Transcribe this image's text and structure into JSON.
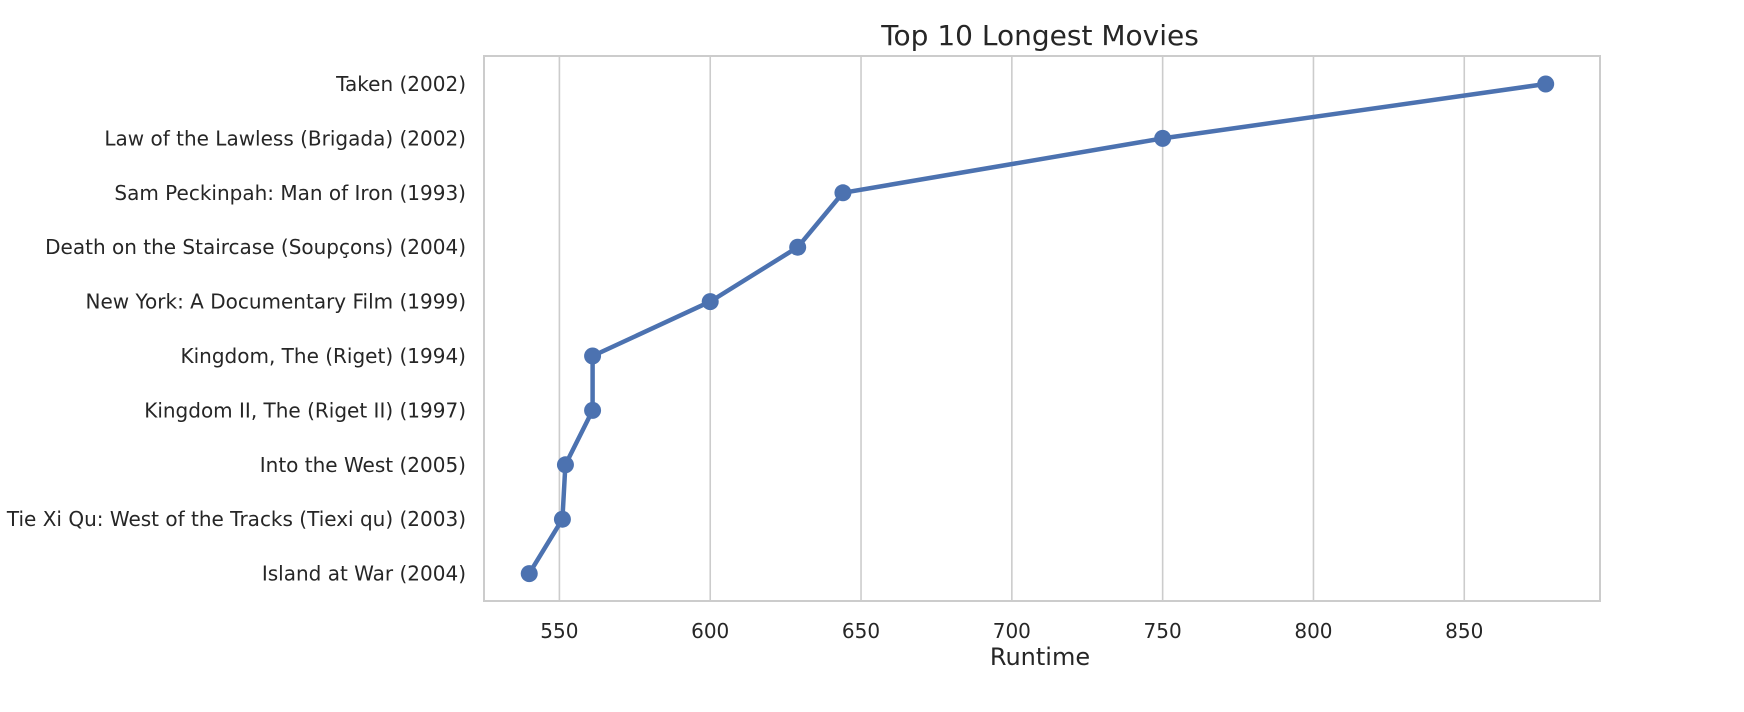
{
  "chart_data": {
    "type": "line",
    "title": "Top 10 Longest Movies",
    "xlabel": "Runtime",
    "ylabel": "",
    "xlim": [
      525,
      895
    ],
    "x_ticks": [
      550,
      600,
      650,
      700,
      750,
      800,
      850
    ],
    "grid": "vertical",
    "colors": {
      "line": "#4c72b0",
      "grid": "#cccccc",
      "text": "#262626"
    },
    "series": [
      {
        "categories": [
          "Taken (2002)",
          "Law of the Lawless (Brigada) (2002)",
          "Sam Peckinpah: Man of Iron (1993)",
          "Death on the Staircase (Soupçons) (2004)",
          "New York: A Documentary Film (1999)",
          "Kingdom, The (Riget) (1994)",
          "Kingdom II, The (Riget II) (1997)",
          "Into the West (2005)",
          "Tie Xi Qu: West of the Tracks (Tiexi qu) (2003)",
          "Island at War (2004)"
        ],
        "values": [
          877,
          750,
          644,
          629,
          600,
          561,
          561,
          552,
          551,
          540
        ]
      }
    ]
  }
}
